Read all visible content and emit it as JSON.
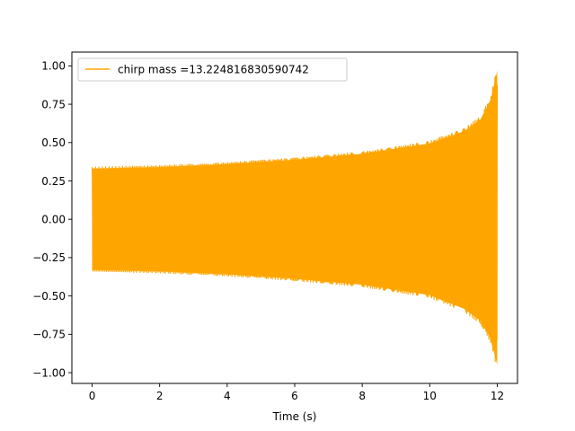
{
  "chart_data": {
    "type": "line",
    "title": "",
    "xlabel": "Time (s)",
    "ylabel": "",
    "xlim": [
      -0.6,
      12.6
    ],
    "ylim": [
      -1.07,
      1.09
    ],
    "x_ticks": [
      0,
      2,
      4,
      6,
      8,
      10,
      12
    ],
    "x_tick_labels": [
      "0",
      "2",
      "4",
      "6",
      "8",
      "10",
      "12"
    ],
    "y_ticks": [
      -1.0,
      -0.75,
      -0.5,
      -0.25,
      0.0,
      0.25,
      0.5,
      0.75,
      1.0
    ],
    "y_tick_labels": [
      "−1.00",
      "−0.75",
      "−0.50",
      "−0.25",
      "0.00",
      "0.25",
      "0.50",
      "0.75",
      "1.00"
    ],
    "grid": false,
    "legend_position": "top-left",
    "series": [
      {
        "name": "chirp mass =13.224816830590742",
        "color": "#ffa500",
        "signal": "chirp",
        "t_start": 0,
        "t_end": 12,
        "envelope_t": [
          0,
          2,
          4,
          6,
          8,
          10,
          11,
          11.5,
          11.8,
          12
        ],
        "envelope_upper": [
          0.34,
          0.35,
          0.37,
          0.4,
          0.44,
          0.51,
          0.59,
          0.67,
          0.8,
          1.0
        ],
        "envelope_lower": [
          -0.34,
          -0.35,
          -0.37,
          -0.4,
          -0.44,
          -0.51,
          -0.6,
          -0.68,
          -0.8,
          -0.98
        ]
      }
    ]
  }
}
